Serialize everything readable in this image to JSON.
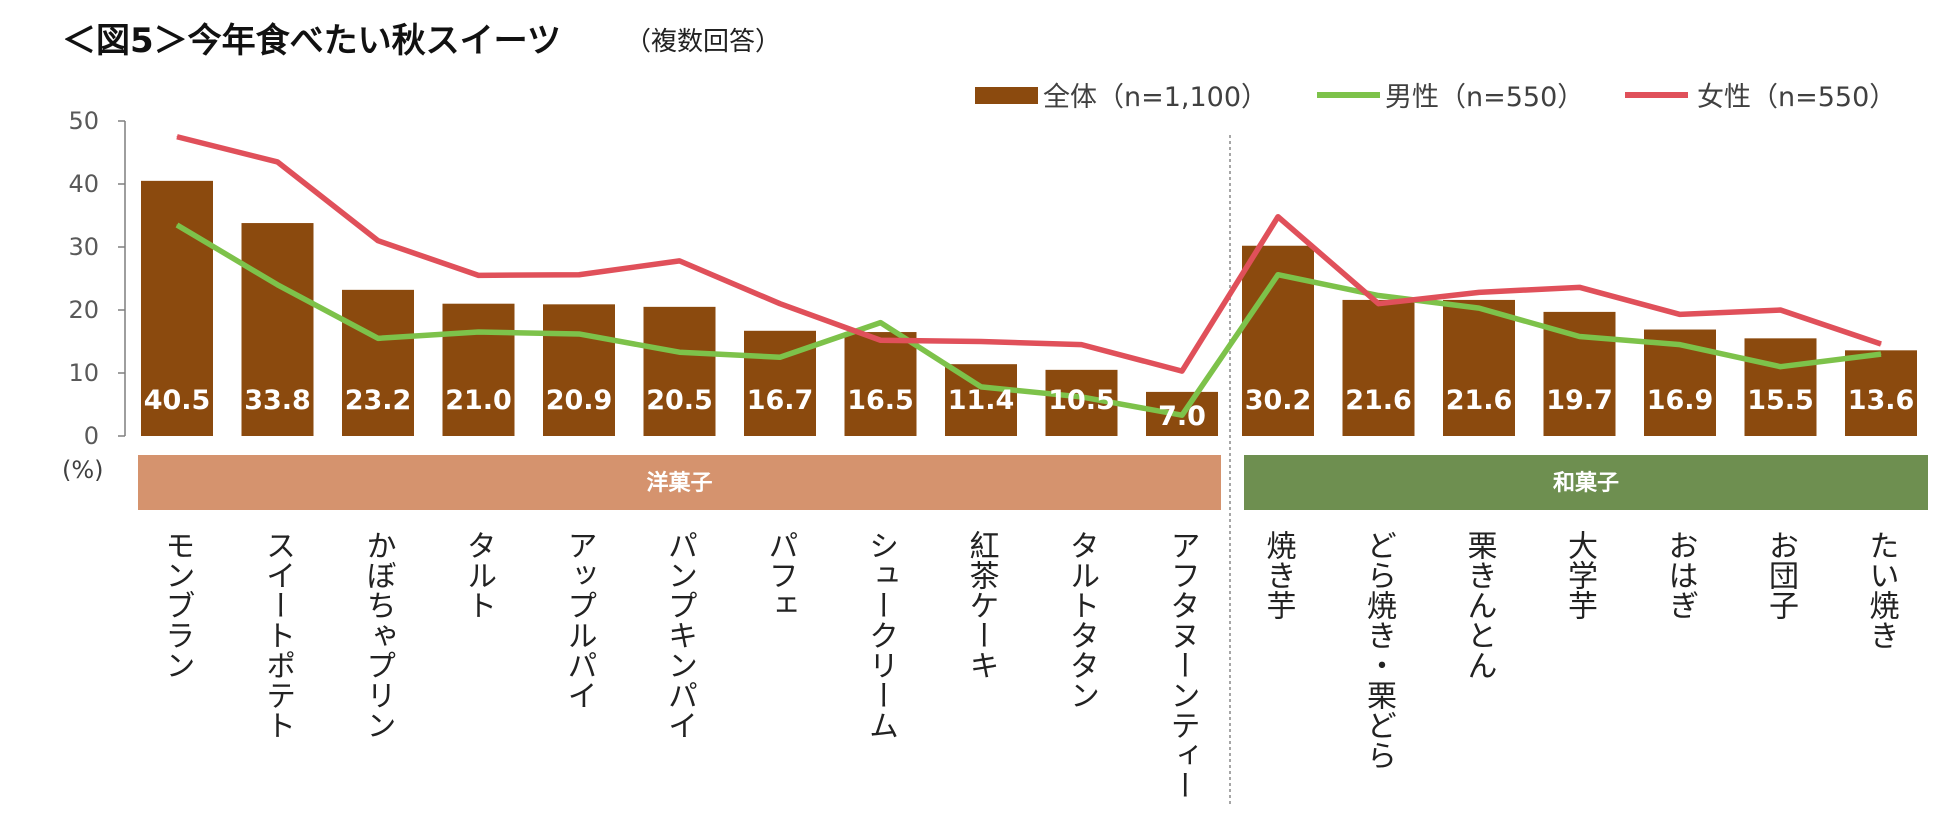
{
  "title": "＜図5＞今年食べたい秋スイーツ",
  "subtitle": "（複数回答）",
  "colors": {
    "bar": "#8B4A0E",
    "male": "#7DC24A",
    "female": "#E0505A",
    "western": "#D5936E",
    "japanese": "#6E8F50"
  },
  "chart_data": {
    "type": "bar",
    "categories": [
      "モンブラン",
      "スイートポテト",
      "かぼちゃプリン",
      "タルト",
      "アップルパイ",
      "パンプキンパイ",
      "パフェ",
      "シュークリーム",
      "紅茶ケーキ",
      "タルトタタン",
      "アフタヌーンティー",
      "焼き芋",
      "どら焼き・栗どら",
      "栗きんとん",
      "大学芋",
      "おはぎ",
      "お団子",
      "たい焼き"
    ],
    "series": [
      {
        "name": "全体（n=1,100）",
        "type": "bar",
        "values": [
          40.5,
          33.8,
          23.2,
          21.0,
          20.9,
          20.5,
          16.7,
          16.5,
          11.4,
          10.5,
          7.0,
          30.2,
          21.6,
          21.6,
          19.7,
          16.9,
          15.5,
          13.6
        ]
      },
      {
        "name": "男性（n=550）",
        "type": "line",
        "values": [
          33.5,
          24.0,
          15.5,
          16.5,
          16.2,
          13.3,
          12.5,
          18.0,
          7.8,
          6.2,
          3.3,
          25.6,
          22.3,
          20.3,
          15.8,
          14.5,
          11.0,
          13.0
        ]
      },
      {
        "name": "女性（n=550）",
        "type": "line",
        "values": [
          47.5,
          43.5,
          31.0,
          25.5,
          25.6,
          27.8,
          21.0,
          15.2,
          15.0,
          14.5,
          10.3,
          34.8,
          21.0,
          22.8,
          23.6,
          19.3,
          20.0,
          14.6
        ]
      }
    ],
    "value_labels": [
      "40.5",
      "33.8",
      "23.2",
      "21.0",
      "20.9",
      "20.5",
      "16.7",
      "16.5",
      "11.4",
      "10.5",
      "7.0",
      "30.2",
      "21.6",
      "21.6",
      "19.7",
      "16.9",
      "15.5",
      "13.6"
    ],
    "yticks": [
      "0",
      "10",
      "20",
      "30",
      "40",
      "50"
    ],
    "ylim": [
      0,
      50
    ],
    "ylabel": "(%)",
    "groups": [
      {
        "label": "洋菓子",
        "from": 0,
        "to": 10
      },
      {
        "label": "和菓子",
        "from": 11,
        "to": 17
      }
    ],
    "legend": "top-right",
    "grid": false
  }
}
